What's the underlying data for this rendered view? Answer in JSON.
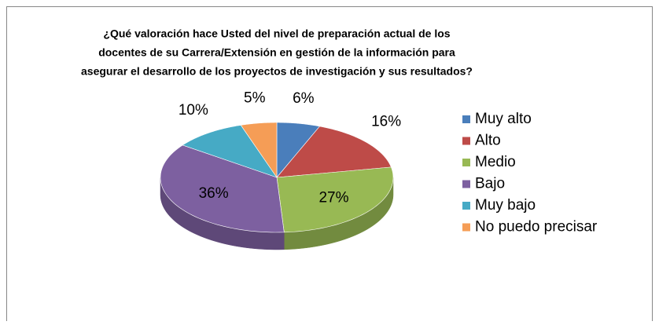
{
  "chart_data": {
    "type": "pie",
    "title": [
      "¿Qué valoración hace Usted del nivel de preparación actual de los",
      "docentes de su Carrera/Extensión en gestión de la información para",
      "asegurar el desarrollo de los proyectos de investigación y sus resultados?"
    ],
    "categories": [
      "Muy alto",
      "Alto",
      "Medio",
      "Bajo",
      "Muy bajo",
      "No puedo precisar"
    ],
    "values": [
      6,
      16,
      27,
      36,
      10,
      5
    ],
    "value_labels": [
      "6%",
      "16%",
      "27%",
      "36%",
      "10%",
      "5%"
    ],
    "colors": [
      "#4a7ebb",
      "#be4b48",
      "#98b954",
      "#7d60a0",
      "#46aac5",
      "#f59d56"
    ],
    "legend": "right"
  }
}
